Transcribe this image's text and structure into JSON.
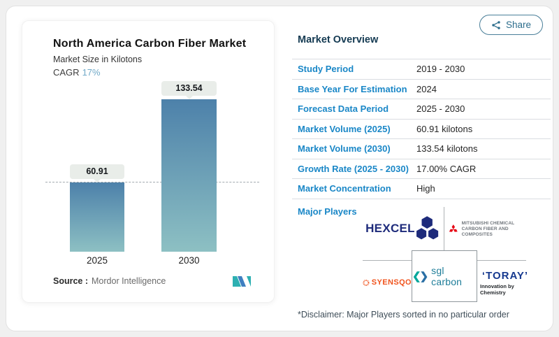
{
  "share": {
    "label": "Share"
  },
  "chart": {
    "source_label": "Source :",
    "source_value": "Mordor Intelligence"
  },
  "chart_data": {
    "type": "bar",
    "title": "North America Carbon Fiber Market",
    "subtitle": "Market Size in Kilotons",
    "cagr_label": "CAGR",
    "cagr_value": "17%",
    "categories": [
      "2025",
      "2030"
    ],
    "values": [
      60.91,
      133.54
    ],
    "value_labels": [
      "60.91",
      "133.54"
    ],
    "xlabel": "",
    "ylabel": "Market Size in Kilotons",
    "ylim": [
      0,
      147
    ],
    "grid": false,
    "legend": false,
    "dashed_guide_at": 60.91
  },
  "overview": {
    "title": "Market Overview",
    "rows": [
      {
        "label": "Study Period",
        "value": "2019 - 2030"
      },
      {
        "label": "Base Year For Estimation",
        "value": "2024"
      },
      {
        "label": "Forecast Data Period",
        "value": "2025 - 2030"
      },
      {
        "label": "Market Volume (2025)",
        "value": "60.91 kilotons"
      },
      {
        "label": "Market Volume (2030)",
        "value": "133.54 kilotons"
      },
      {
        "label": "Growth Rate (2025 - 2030)",
        "value": "17.00% CAGR"
      },
      {
        "label": "Market Concentration",
        "value": "High"
      }
    ],
    "major_players_label": "Major Players",
    "players": [
      "Hexcel",
      "Mitsubishi Chemical Carbon Fiber and Composites",
      "Syensqo",
      "SGL Carbon",
      "Toray"
    ],
    "disclaimer": "*Disclaimer: Major Players sorted in no particular order"
  },
  "logos": {
    "hexcel": "HEXCEL",
    "mitsubishi_line1": "MITSUBISHI CHEMICAL",
    "mitsubishi_line2": "CARBON FIBER AND COMPOSITES",
    "syensqo": "SYENSQO",
    "sgl": "sgl carbon",
    "toray": "‘TORAY’",
    "toray_tagline": "Innovation by Chemistry"
  },
  "colors": {
    "label-blue": "#1a87c7",
    "heading-navy": "#143a52",
    "bar-top": "#4d81aa",
    "bar-bottom": "#8dc0c3",
    "badge-bg": "#e9ede9",
    "cagr-blue": "#70a9c8",
    "share-blue": "#2c6d8c",
    "hexcel-navy": "#1e2b7b",
    "mitsubishi-red": "#e60012",
    "syensqo-orange": "#f0541e",
    "sgl-teal": "#1e7d99",
    "toray-navy": "#16398f"
  }
}
